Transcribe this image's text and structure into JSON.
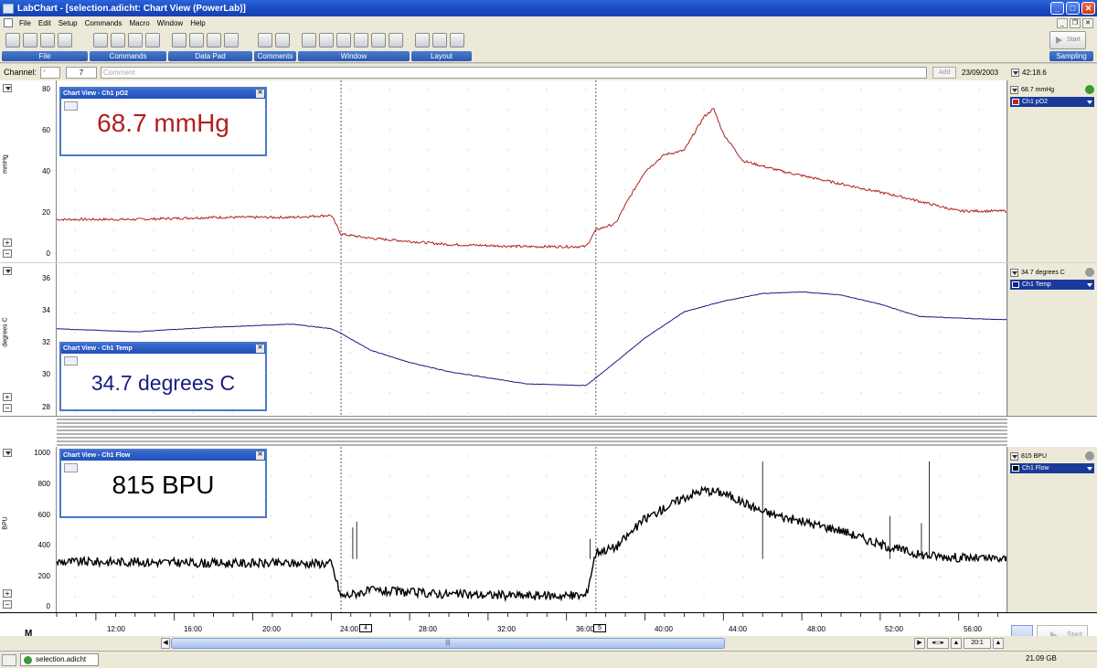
{
  "window": {
    "title": "LabChart - [selection.adicht: Chart View (PowerLab)]"
  },
  "menu": [
    "File",
    "Edit",
    "Setup",
    "Commands",
    "Macro",
    "Window",
    "Help"
  ],
  "toolbar": {
    "groups": [
      {
        "label": "File"
      },
      {
        "label": "Commands"
      },
      {
        "label": "Data Pad"
      },
      {
        "label": "Comments"
      },
      {
        "label": "Window"
      },
      {
        "label": "Layout"
      },
      {
        "label": "Sampling"
      }
    ],
    "start_label": "Start"
  },
  "channel_bar": {
    "label": "Channel:",
    "channel_value": "7",
    "comment_placeholder": "Comment",
    "add_label": "Add",
    "date": "23/09/2003",
    "time": "42:18.6"
  },
  "channels": [
    {
      "id": "po2",
      "unit": "mmHg",
      "ticks": [
        "80",
        "60",
        "40",
        "20",
        "0"
      ],
      "reading": "68.7 mmHg",
      "selector": "Ch1 pO2",
      "window_title": "Chart View - Ch1 pO2",
      "big_value": "68.7 mmHg",
      "color": "#b02020",
      "swatch": "#c02020",
      "status_color": "#3a9a2a"
    },
    {
      "id": "temp",
      "unit": "degrees C",
      "ticks": [
        "36",
        "34",
        "32",
        "30",
        "28"
      ],
      "reading": "34.7 degrees C",
      "selector": "Ch1 Temp",
      "window_title": "Chart View - Ch1 Temp",
      "big_value": "34.7 degrees C",
      "color": "#1a1a80",
      "swatch": "#1a1a90",
      "status_color": "#999999"
    },
    {
      "id": "flow",
      "unit": "BPU",
      "ticks": [
        "1000",
        "800",
        "600",
        "400",
        "200",
        "0"
      ],
      "reading": "815 BPU",
      "selector": "Ch1 Flow",
      "window_title": "Chart View - Ch1 Flow",
      "big_value": "815 BPU",
      "color": "#000000",
      "swatch": "#000000",
      "status_color": "#999999"
    }
  ],
  "time_axis": {
    "labels": [
      "12:00",
      "16:00",
      "20:00",
      "24:00",
      "28:00",
      "32:00",
      "36:00",
      "40:00",
      "44:00",
      "48:00",
      "52:00",
      "56:00"
    ],
    "markers": [
      "4",
      "5"
    ]
  },
  "bottom": {
    "zoom": "20:1",
    "m_label": "M",
    "start_label": "Start"
  },
  "status": {
    "file_tab": "selection.adicht",
    "disk_free": "21.09 GB"
  },
  "chart_data": [
    {
      "type": "line",
      "series": [
        {
          "name": "Ch1 pO2",
          "x_min": [
            10,
            14,
            18,
            22,
            24,
            24.5,
            26,
            30,
            34,
            37,
            37.5,
            38.5,
            39,
            40,
            41,
            42,
            43,
            43.5,
            44,
            45,
            47,
            50,
            53,
            56,
            58
          ]
        }
      ],
      "x": [
        10,
        14,
        18,
        22,
        24,
        24.5,
        26,
        30,
        34,
        37,
        37.5,
        38.5,
        39,
        40,
        41,
        42,
        43,
        43.5,
        44,
        45,
        47,
        50,
        53,
        56,
        58
      ],
      "values": [
        17,
        17,
        18,
        18,
        19,
        10,
        8,
        5,
        4,
        4,
        12,
        15,
        24,
        40,
        48,
        50,
        66,
        70,
        58,
        45,
        40,
        34,
        28,
        21,
        21
      ],
      "ylabel": "mmHg",
      "ylim": [
        0,
        80
      ]
    },
    {
      "type": "line",
      "x": [
        10,
        14,
        18,
        22,
        24,
        24.5,
        26,
        28,
        30,
        32,
        34,
        37,
        38,
        40,
        42,
        44,
        46,
        48,
        50,
        52,
        54,
        58
      ],
      "values": [
        33.2,
        33.0,
        33.3,
        33.5,
        33.2,
        32.9,
        31.8,
        31.0,
        30.4,
        30.0,
        29.6,
        29.5,
        30.5,
        32.6,
        34.3,
        35.0,
        35.5,
        35.6,
        35.4,
        34.8,
        34.0,
        33.8
      ],
      "ylabel": "degrees C",
      "ylim": [
        28,
        37
      ]
    },
    {
      "type": "line",
      "x": [
        10,
        14,
        18,
        22,
        24,
        24.5,
        26,
        30,
        34,
        37,
        37.5,
        38.5,
        40,
        42,
        43,
        44,
        46,
        48,
        50,
        52,
        54,
        56,
        58
      ],
      "values": [
        300,
        300,
        290,
        290,
        290,
        60,
        100,
        75,
        65,
        65,
        370,
        400,
        600,
        750,
        800,
        780,
        650,
        580,
        520,
        420,
        350,
        330,
        320
      ],
      "ylabel": "BPU",
      "ylim": [
        0,
        1050
      ]
    }
  ]
}
